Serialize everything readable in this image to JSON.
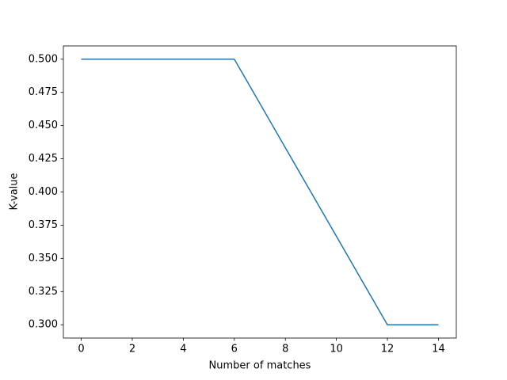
{
  "chart_data": {
    "type": "line",
    "x_label": "Number of matches",
    "y_label": "K-value",
    "x": [
      0,
      1,
      2,
      3,
      4,
      5,
      6,
      7,
      8,
      9,
      10,
      11,
      12,
      13,
      14
    ],
    "series": [
      {
        "color": "#1f77b4",
        "values": [
          0.5,
          0.5,
          0.5,
          0.5,
          0.5,
          0.5,
          0.5,
          0.4667,
          0.4333,
          0.4,
          0.3667,
          0.3333,
          0.3,
          0.3,
          0.3
        ]
      }
    ],
    "xlim": [
      -0.7,
      14.7
    ],
    "ylim": [
      0.29,
      0.51
    ],
    "xticks": [
      0,
      2,
      4,
      6,
      8,
      10,
      12,
      14
    ],
    "yticks": [
      {
        "value": 0.3,
        "label": "0.300"
      },
      {
        "value": 0.325,
        "label": "0.325"
      },
      {
        "value": 0.35,
        "label": "0.350"
      },
      {
        "value": 0.375,
        "label": "0.375"
      },
      {
        "value": 0.4,
        "label": "0.400"
      },
      {
        "value": 0.425,
        "label": "0.425"
      },
      {
        "value": 0.45,
        "label": "0.450"
      },
      {
        "value": 0.475,
        "label": "0.475"
      },
      {
        "value": 0.5,
        "label": "0.500"
      }
    ],
    "grid": false
  }
}
